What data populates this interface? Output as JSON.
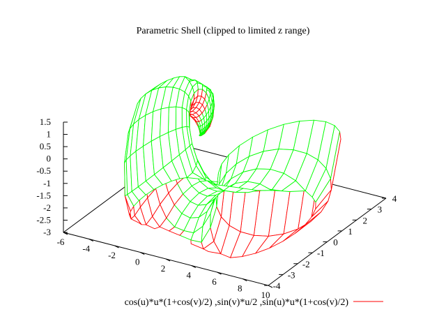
{
  "chart_data": {
    "type": "surface3d",
    "title": "Parametric Shell (clipped to limited z range)",
    "xlabel": "",
    "ylabel": "",
    "zlabel": "",
    "xlim": [
      -6,
      10
    ],
    "ylim": [
      -4,
      4
    ],
    "zlim": [
      -3,
      1.5
    ],
    "x_ticks": [
      "-6",
      "-4",
      "-2",
      "0",
      "2",
      "4",
      "6",
      "8",
      "10"
    ],
    "y_ticks": [
      "-4",
      "-3",
      "-2",
      "-1",
      "0",
      "1",
      "2",
      "3",
      "4"
    ],
    "z_ticks": [
      "1.5",
      "1",
      "0.5",
      "0",
      "-0.5",
      "-1",
      "-1.5",
      "-2",
      "-2.5",
      "-3"
    ],
    "grid": false,
    "legend_position": "bottom",
    "series": [
      {
        "name": "cos(u)*u*(1+cos(v)/2) ,sin(v)*u/2 ,sin(u)*u*(1+cos(v)/2)",
        "top_color": "#ff0000",
        "bottom_color": "#00ff00",
        "u_range": [
          0,
          6.2832
        ],
        "v_range": [
          0,
          6.2832
        ]
      }
    ]
  }
}
